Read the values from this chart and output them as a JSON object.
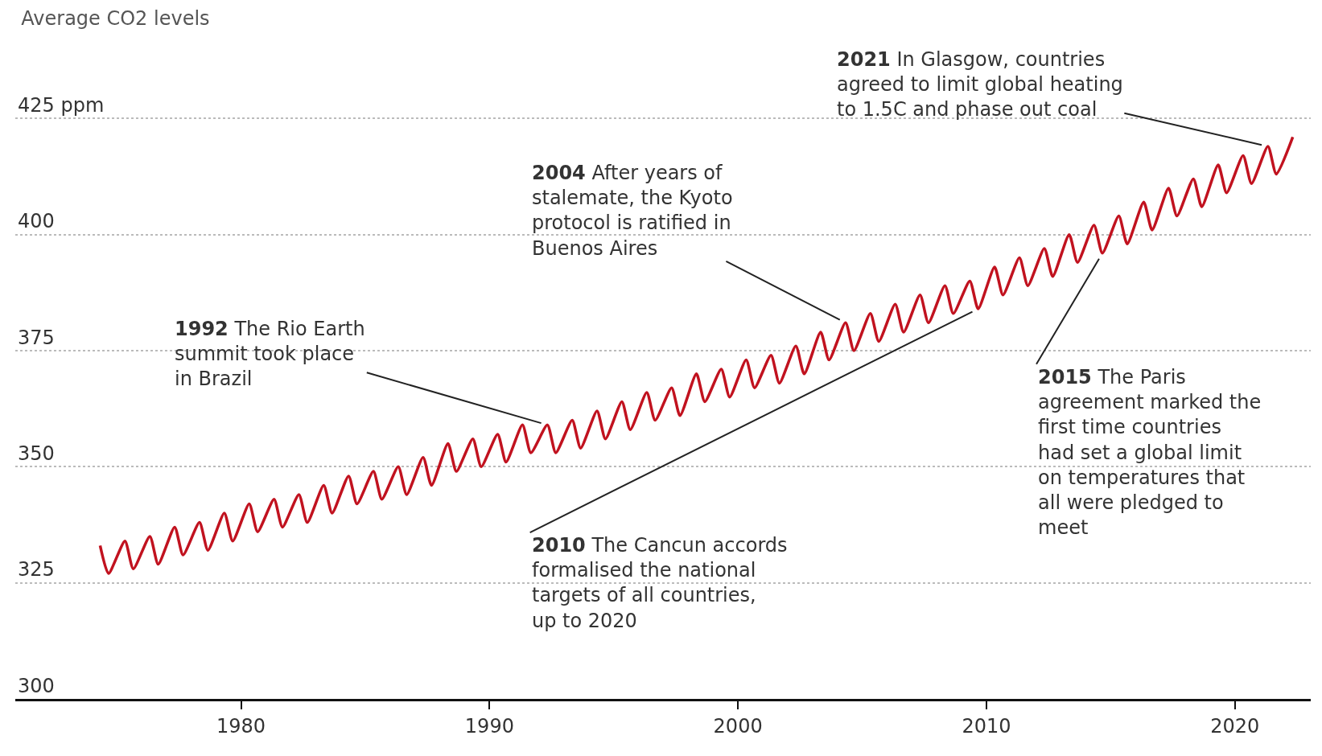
{
  "chart_data": {
    "type": "line",
    "title": "Average CO2 levels",
    "x": [
      "1974-05",
      "1974-09",
      "1975-05",
      "1975-09",
      "1976-05",
      "1976-09",
      "1977-05",
      "1977-09",
      "1978-05",
      "1978-09",
      "1979-05",
      "1979-09",
      "1980-05",
      "1980-09",
      "1981-05",
      "1981-09",
      "1982-05",
      "1982-09",
      "1983-05",
      "1983-09",
      "1984-05",
      "1984-09",
      "1985-05",
      "1985-09",
      "1986-05",
      "1986-09",
      "1987-05",
      "1987-09",
      "1988-05",
      "1988-09",
      "1989-05",
      "1989-09",
      "1990-05",
      "1990-09",
      "1991-05",
      "1991-09",
      "1992-05",
      "1992-09",
      "1993-05",
      "1993-09",
      "1994-05",
      "1994-09",
      "1995-05",
      "1995-09",
      "1996-05",
      "1996-09",
      "1997-05",
      "1997-09",
      "1998-05",
      "1998-09",
      "1999-05",
      "1999-09",
      "2000-05",
      "2000-09",
      "2001-05",
      "2001-09",
      "2002-05",
      "2002-09",
      "2003-05",
      "2003-09",
      "2004-05",
      "2004-09",
      "2005-05",
      "2005-09",
      "2006-05",
      "2006-09",
      "2007-05",
      "2007-09",
      "2008-05",
      "2008-09",
      "2009-05",
      "2009-09",
      "2010-05",
      "2010-09",
      "2011-05",
      "2011-09",
      "2012-05",
      "2012-09",
      "2013-05",
      "2013-09",
      "2014-05",
      "2014-09",
      "2015-05",
      "2015-09",
      "2016-05",
      "2016-09",
      "2017-05",
      "2017-09",
      "2018-05",
      "2018-09",
      "2019-05",
      "2019-09",
      "2020-05",
      "2020-09",
      "2021-05",
      "2021-09",
      "2022-05"
    ],
    "series": [
      {
        "color": "#c1121f",
        "values": [
          333,
          327,
          334,
          328,
          335,
          329,
          337,
          331,
          338,
          332,
          340,
          334,
          342,
          336,
          343,
          337,
          344,
          338,
          346,
          340,
          348,
          342,
          349,
          343,
          350,
          344,
          352,
          346,
          355,
          349,
          356,
          350,
          357,
          351,
          359,
          353,
          359,
          353,
          360,
          354,
          362,
          356,
          364,
          358,
          366,
          360,
          367,
          361,
          370,
          364,
          371,
          365,
          373,
          367,
          374,
          368,
          376,
          370,
          379,
          373,
          381,
          375,
          383,
          377,
          385,
          379,
          387,
          381,
          389,
          383,
          390,
          384,
          393,
          387,
          395,
          389,
          397,
          391,
          400,
          394,
          402,
          396,
          404,
          398,
          407,
          401,
          410,
          404,
          412,
          406,
          415,
          409,
          417,
          411,
          419,
          413,
          421
        ]
      }
    ],
    "xlim": [
      "1970-12-01",
      "2023-01-20"
    ],
    "xticks": [
      {
        "value": "1980-01-01",
        "label": "1980"
      },
      {
        "value": "1990-01-01",
        "label": "1990"
      },
      {
        "value": "2000-01-01",
        "label": "2000"
      },
      {
        "value": "2010-01-01",
        "label": "2010"
      },
      {
        "value": "2020-01-01",
        "label": "2020"
      }
    ],
    "ylim": [
      300,
      450
    ],
    "yticks": [
      300,
      325,
      350,
      375,
      400,
      {
        "value": 425,
        "label": "425 ppm"
      }
    ],
    "grid": "y",
    "marker": "none",
    "line_style": "solid",
    "annotations": [
      {
        "text": "1992 The Rio Earth summit took place in Brazil",
        "x": "1992-05",
        "y": 359
      },
      {
        "text": "2004 After years of stalemate, the Kyoto protocol is ratified in Buenos Aires",
        "x": "2004-05",
        "y": 381
      },
      {
        "text": "2010 The Cancun accords formalised the national targets of all countries, up to 2020",
        "x": "2009-09",
        "y": 384
      },
      {
        "text": "2015 The Paris agreement marked the first time countries had set a global limit on temperatures that all were pledged to meet",
        "x": "2014-09",
        "y": 396
      },
      {
        "text": "2021 In Glasgow, countries agreed to limit global heating to 1.5C and phase out coal",
        "x": "2021-05",
        "y": 419
      }
    ]
  }
}
